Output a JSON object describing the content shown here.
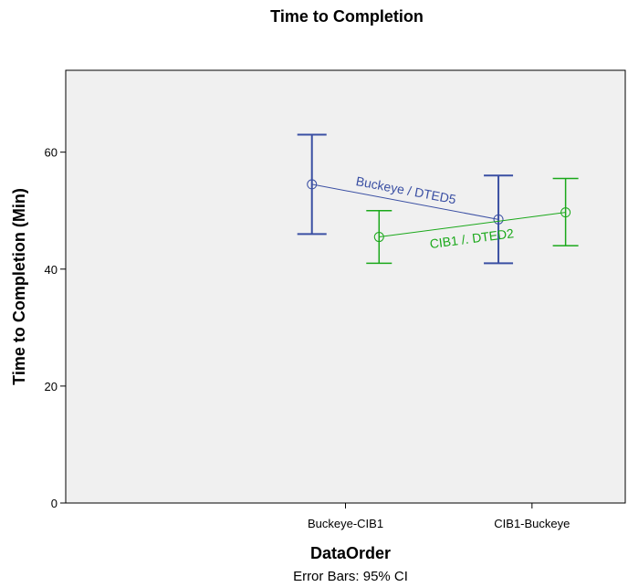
{
  "chart_data": {
    "type": "line",
    "title": "Time to Completion",
    "xlabel": "DataOrder",
    "ylabel": "Time to Completion (Min)",
    "footnote": "Error Bars: 95% CI",
    "categories": [
      "Buckeye-CIB1",
      "CIB1-Buckeye"
    ],
    "ylim": [
      0,
      74
    ],
    "yticks": [
      0,
      20,
      40,
      60
    ],
    "grid": false,
    "plot_background": "#f0f0f0",
    "series": [
      {
        "name": "Buckeye / DTED5",
        "color": "#3a4fa3",
        "offset": -0.18,
        "values": [
          54.5,
          48.5
        ],
        "ci_lower": [
          46,
          41
        ],
        "ci_upper": [
          63,
          56
        ]
      },
      {
        "name": "CIB1 /. DTED2",
        "color": "#1aa81a",
        "offset": 0.18,
        "values": [
          45.5,
          49.7
        ],
        "ci_lower": [
          41,
          44
        ],
        "ci_upper": [
          50,
          55.5
        ]
      }
    ]
  }
}
